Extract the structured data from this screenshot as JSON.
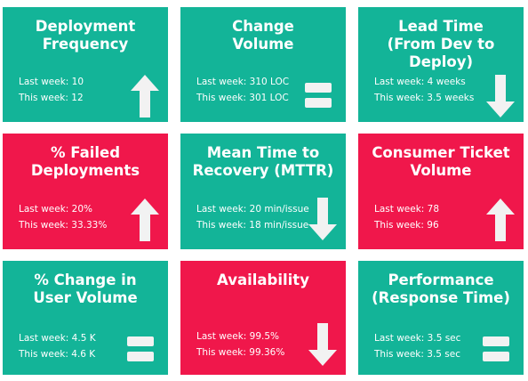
{
  "colors": {
    "good": "#13b498",
    "bad": "#f0174b",
    "icon": "#f2f2f2"
  },
  "cards": [
    {
      "title": [
        "Deployment",
        "Frequency"
      ],
      "last_week": "Last week: 10",
      "this_week": "This week: 12",
      "trend": "up",
      "status": "good",
      "icon": "arrow-up-icon"
    },
    {
      "title": [
        "Change",
        "Volume"
      ],
      "last_week": "Last week: 310 LOC",
      "this_week": "This week: 301 LOC",
      "trend": "equal",
      "status": "good",
      "icon": "equals-icon"
    },
    {
      "title": [
        "Lead Time",
        "(From Dev to Deploy)"
      ],
      "last_week": "Last week: 4 weeks",
      "this_week": "This week: 3.5 weeks",
      "trend": "down",
      "status": "good",
      "icon": "arrow-down-icon"
    },
    {
      "title": [
        "% Failed",
        "Deployments"
      ],
      "last_week": "Last week: 20%",
      "this_week": "This week: 33.33%",
      "trend": "up",
      "status": "bad",
      "icon": "arrow-up-icon"
    },
    {
      "title": [
        "Mean Time to",
        "Recovery (MTTR)"
      ],
      "last_week": "Last week: 20 min/issue",
      "this_week": "This week: 18 min/issue",
      "trend": "down",
      "status": "good",
      "icon": "arrow-down-icon"
    },
    {
      "title": [
        "Consumer Ticket",
        "Volume"
      ],
      "last_week": "Last week: 78",
      "this_week": "This week: 96",
      "trend": "up",
      "status": "bad",
      "icon": "arrow-up-icon"
    },
    {
      "title": [
        "% Change in",
        "User Volume"
      ],
      "last_week": "Last week: 4.5 K",
      "this_week": "This week: 4.6 K",
      "trend": "equal",
      "status": "good",
      "icon": "equals-icon"
    },
    {
      "title": [
        "Availability"
      ],
      "last_week": "Last week: 99.5%",
      "this_week": "This week: 99.36%",
      "trend": "down",
      "status": "bad",
      "icon": "arrow-down-icon"
    },
    {
      "title": [
        "Performance",
        "(Response Time)"
      ],
      "last_week": "Last week: 3.5 sec",
      "this_week": "This week: 3.5 sec",
      "trend": "equal",
      "status": "good",
      "icon": "equals-icon"
    }
  ]
}
